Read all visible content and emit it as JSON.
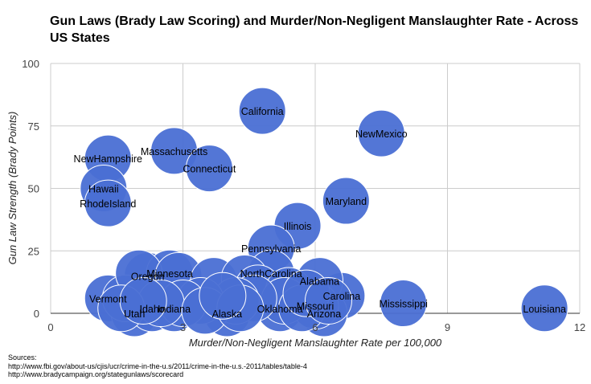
{
  "chart_data": {
    "type": "scatter",
    "title": "Gun Laws (Brady Law Scoring) and Murder/Non-Negligent Manslaughter Rate - Across US States",
    "xlabel": "Murder/Non-Negligent Manslaughter Rate per 100,000",
    "ylabel": "Gun Law Strength (Brady Points)",
    "xlim": [
      0,
      12
    ],
    "ylim": [
      0,
      100
    ],
    "xticks": [
      0,
      3,
      6,
      9,
      12
    ],
    "yticks": [
      0,
      25,
      50,
      75,
      100
    ],
    "grid": true,
    "marker_color": "#4a6fd4",
    "points": [
      {
        "label": "California",
        "x": 4.8,
        "y": 81
      },
      {
        "label": "NewMexico",
        "x": 7.5,
        "y": 72
      },
      {
        "label": "NewHampshire",
        "x": 1.3,
        "y": 62
      },
      {
        "label": "Massachusetts",
        "x": 2.8,
        "y": 65
      },
      {
        "label": "Connecticut",
        "x": 3.6,
        "y": 58
      },
      {
        "label": "Hawaii",
        "x": 1.2,
        "y": 50
      },
      {
        "label": "RhodeIsland",
        "x": 1.3,
        "y": 44
      },
      {
        "label": "Maryland",
        "x": 6.7,
        "y": 45
      },
      {
        "label": "Illinois",
        "x": 5.6,
        "y": 35
      },
      {
        "label": "Pennsylvania",
        "x": 5.0,
        "y": 26
      },
      {
        "label": "Oregon",
        "x": 2.2,
        "y": 15
      },
      {
        "label": "Minnesota",
        "x": 2.7,
        "y": 16
      },
      {
        "label": "Carolina",
        "x": 6.6,
        "y": 7
      },
      {
        "label": "Mississippi",
        "x": 8.0,
        "y": 4
      },
      {
        "label": "Louisiana",
        "x": 11.2,
        "y": 2
      },
      {
        "label": "Vermont",
        "x": 1.3,
        "y": 6
      },
      {
        "label": "Utah",
        "x": 1.9,
        "y": 0
      },
      {
        "label": "Idaho",
        "x": 2.3,
        "y": 2
      },
      {
        "label": "Indiana",
        "x": 2.8,
        "y": 2
      },
      {
        "label": "Alaska",
        "x": 4.0,
        "y": 0
      },
      {
        "label": "Oklahoma",
        "x": 5.2,
        "y": 2
      },
      {
        "label": "Arizona",
        "x": 6.2,
        "y": 0
      },
      {
        "label": "NorthCarolina",
        "x": 5.0,
        "y": 16
      },
      {
        "label": "Alabama",
        "x": 6.1,
        "y": 13
      },
      {
        "label": "Missouri",
        "x": 6.0,
        "y": 3
      },
      {
        "label": "",
        "x": 1.7,
        "y": 6
      },
      {
        "label": "",
        "x": 2.0,
        "y": 16
      },
      {
        "label": "",
        "x": 2.9,
        "y": 15
      },
      {
        "label": "",
        "x": 3.7,
        "y": 13
      },
      {
        "label": "",
        "x": 4.4,
        "y": 14
      },
      {
        "label": "",
        "x": 4.7,
        "y": 10
      },
      {
        "label": "",
        "x": 5.4,
        "y": 9
      },
      {
        "label": "",
        "x": 5.3,
        "y": 5
      },
      {
        "label": "",
        "x": 4.6,
        "y": 6
      },
      {
        "label": "",
        "x": 4.2,
        "y": 5
      },
      {
        "label": "",
        "x": 3.4,
        "y": 5
      },
      {
        "label": "",
        "x": 3.0,
        "y": 4
      },
      {
        "label": "",
        "x": 2.5,
        "y": 4
      },
      {
        "label": "",
        "x": 1.6,
        "y": 2
      },
      {
        "label": "",
        "x": 3.5,
        "y": 1
      },
      {
        "label": "",
        "x": 4.3,
        "y": 2
      },
      {
        "label": "",
        "x": 5.7,
        "y": 2
      },
      {
        "label": "",
        "x": 2.1,
        "y": 5
      },
      {
        "label": "",
        "x": 3.9,
        "y": 7
      },
      {
        "label": "",
        "x": 5.8,
        "y": 8
      },
      {
        "label": "",
        "x": 6.3,
        "y": 5
      }
    ]
  },
  "sources": {
    "heading": "Sources:",
    "line1": "http://www.fbi.gov/about-us/cjis/ucr/crime-in-the-u.s/2011/crime-in-the-u.s.-2011/tables/table-4",
    "line2": "http://www.bradycampaign.org/stategunlaws/scorecard"
  }
}
